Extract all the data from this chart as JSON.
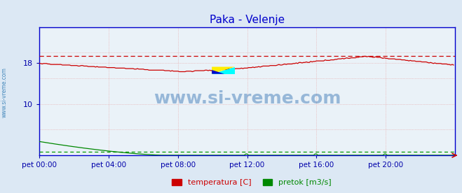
{
  "title": "Paka - Velenje",
  "title_color": "#0000cc",
  "bg_color": "#dce8f4",
  "plot_bg_color": "#eaf2f8",
  "grid_color_v": "#e8b0b0",
  "grid_color_h": "#e8b0b0",
  "axis_color": "#0000cc",
  "tick_color": "#0000aa",
  "temp_max_line_y": 19.4,
  "pretok_avg_line_y": 0.75,
  "ylim": [
    0,
    25
  ],
  "ytick_values": [
    10,
    18
  ],
  "ytick_labels": [
    "10",
    "18"
  ],
  "xtick_positions": [
    0,
    48,
    96,
    144,
    192,
    240
  ],
  "xtick_labels": [
    "pet 00:00",
    "pet 04:00",
    "pet 08:00",
    "pet 12:00",
    "pet 16:00",
    "pet 20:00"
  ],
  "watermark": "www.si-vreme.com",
  "watermark_color": "#1a5fa8",
  "sidebar": "www.si-vreme.com",
  "sidebar_color": "#4488bb",
  "legend_labels": [
    "temperatura [C]",
    "pretok [m3/s]"
  ],
  "temp_color": "#cc0000",
  "pretok_color": "#008800",
  "temp_dashed_color": "#cc0000",
  "pretok_dashed_color": "#009900",
  "logo_yellow": "#ffee00",
  "logo_cyan": "#00ffff",
  "logo_blue": "#0000cc"
}
